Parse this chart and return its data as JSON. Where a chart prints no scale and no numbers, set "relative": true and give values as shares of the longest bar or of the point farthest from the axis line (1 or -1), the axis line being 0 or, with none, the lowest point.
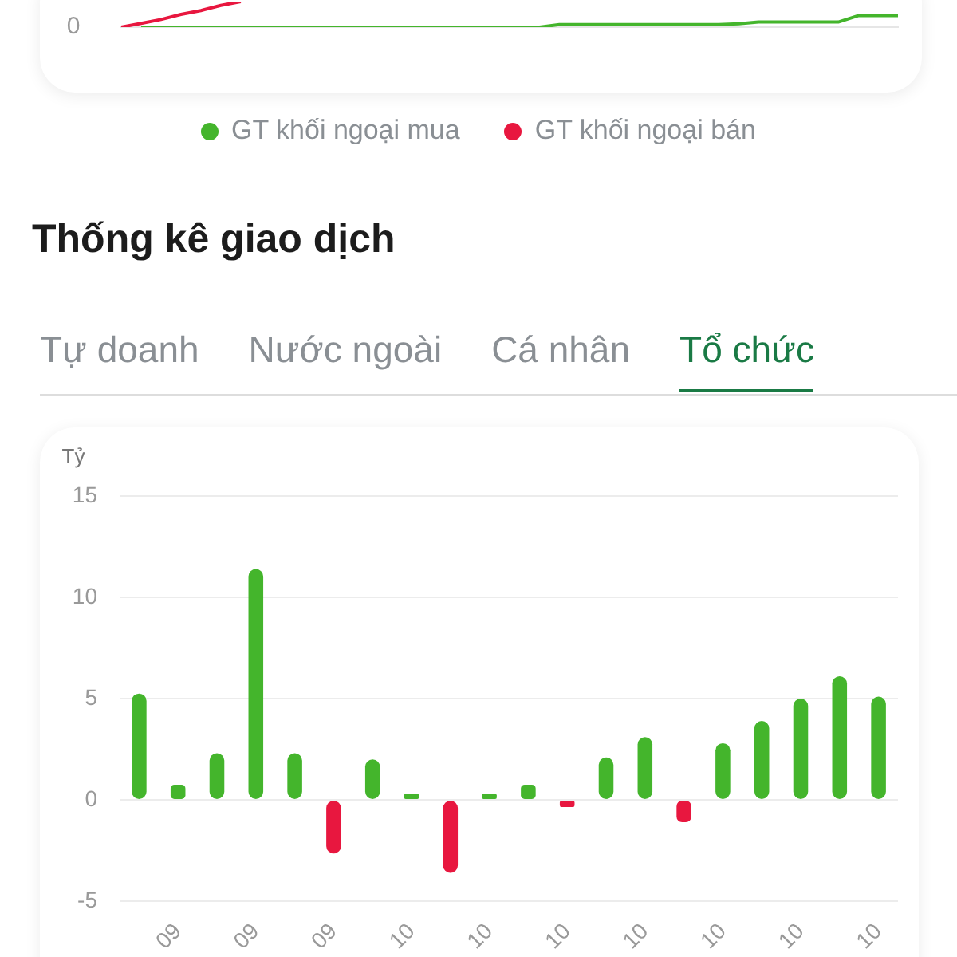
{
  "chart_data": [
    {
      "type": "line",
      "relative": true,
      "legend": "bottom",
      "categories": [
        null,
        null,
        null,
        null,
        null,
        null,
        null,
        null,
        null,
        null,
        null,
        null,
        null,
        null,
        null,
        null,
        null,
        null,
        null,
        null,
        null,
        null,
        null,
        null,
        null,
        null,
        null,
        null,
        null,
        null,
        null,
        null,
        null,
        null,
        null,
        null,
        null,
        null,
        null,
        null
      ],
      "series": [
        {
          "name": "GT khối ngoại mua",
          "color": "#44b52c",
          "values": [
            null,
            0,
            0,
            0,
            0,
            0,
            0,
            0,
            0,
            0,
            0,
            0,
            0,
            0,
            0,
            0,
            0,
            0,
            0,
            0,
            0,
            0,
            0.1,
            0.1,
            0.1,
            0.1,
            0.1,
            0.1,
            0.1,
            0.1,
            0.1,
            0.13,
            0.2,
            0.2,
            0.2,
            0.2,
            0.2,
            0.45,
            0.45,
            0.45
          ]
        },
        {
          "name": "GT khối ngoại bán",
          "color": "#e8173f",
          "values": [
            0,
            0.15,
            0.3,
            0.5,
            0.65,
            0.85,
            1,
            null,
            null,
            null,
            null,
            null,
            null,
            null,
            null,
            null,
            null,
            null,
            null,
            null,
            null,
            null,
            null,
            null,
            null,
            null,
            null,
            null,
            null,
            null,
            null,
            null,
            null,
            null,
            null,
            null,
            null,
            null,
            null,
            null
          ]
        }
      ],
      "annotations": [
        "0"
      ]
    },
    {
      "type": "bar",
      "title": "Thống kê giao dịch",
      "ylabel": "Tỷ",
      "annotations": [
        "Tự doanh",
        "Nước ngoài",
        "Cá nhân",
        "Tổ chức"
      ],
      "categories": [
        null,
        "09",
        null,
        "09",
        null,
        "09",
        null,
        "10",
        null,
        "10",
        null,
        "10",
        null,
        "10",
        null,
        "10",
        null,
        "10",
        null,
        "10"
      ],
      "values": [
        5.25,
        0.75,
        2.3,
        11.4,
        2.3,
        -2.65,
        2.0,
        0.3,
        -3.6,
        0.3,
        0.75,
        -0.35,
        2.1,
        3.1,
        -1.1,
        2.8,
        3.9,
        5.0,
        6.1,
        5.1
      ],
      "colors": [
        "#44b52c",
        "#44b52c",
        "#44b52c",
        "#44b52c",
        "#44b52c",
        "#e8173f",
        "#44b52c",
        "#44b52c",
        "#e8173f",
        "#44b52c",
        "#44b52c",
        "#e8173f",
        "#44b52c",
        "#44b52c",
        "#e8173f",
        "#44b52c",
        "#44b52c",
        "#44b52c",
        "#44b52c",
        "#44b52c"
      ],
      "ylim": [
        -5,
        15
      ],
      "yticks": [
        -5,
        0,
        5,
        10,
        15
      ],
      "grid": "y"
    }
  ]
}
